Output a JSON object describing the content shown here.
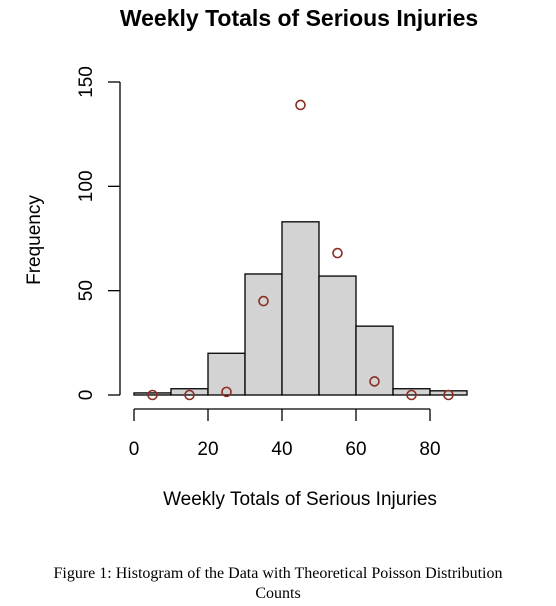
{
  "chart_data": {
    "type": "bar",
    "title": "Weekly Totals of Serious Injuries",
    "xlabel": "Weekly Totals of Serious Injuries",
    "ylabel": "Frequency",
    "bins": [
      [
        0,
        10
      ],
      [
        10,
        20
      ],
      [
        20,
        30
      ],
      [
        30,
        40
      ],
      [
        40,
        50
      ],
      [
        50,
        60
      ],
      [
        60,
        70
      ],
      [
        70,
        80
      ],
      [
        80,
        90
      ]
    ],
    "values": [
      1,
      3,
      20,
      58,
      83,
      57,
      33,
      3,
      2
    ],
    "xlim": [
      0,
      90
    ],
    "ylim": [
      0,
      150
    ],
    "xticks": [
      0,
      20,
      40,
      60,
      80
    ],
    "yticks": [
      0,
      50,
      100,
      150
    ],
    "grid": false,
    "bar_color": "#d3d3d3",
    "series": [
      {
        "type": "scatter",
        "marker": "open-circle",
        "color": "#8b2e24",
        "x": [
          5,
          15,
          25,
          35,
          45,
          55,
          65,
          75,
          85
        ],
        "values": [
          0,
          0,
          1.5,
          45,
          139,
          68,
          6.5,
          0,
          0
        ]
      }
    ]
  },
  "caption": {
    "line1": "Figure 1: Histogram of the Data with Theoretical Poisson Distribution",
    "line2": "Counts"
  }
}
